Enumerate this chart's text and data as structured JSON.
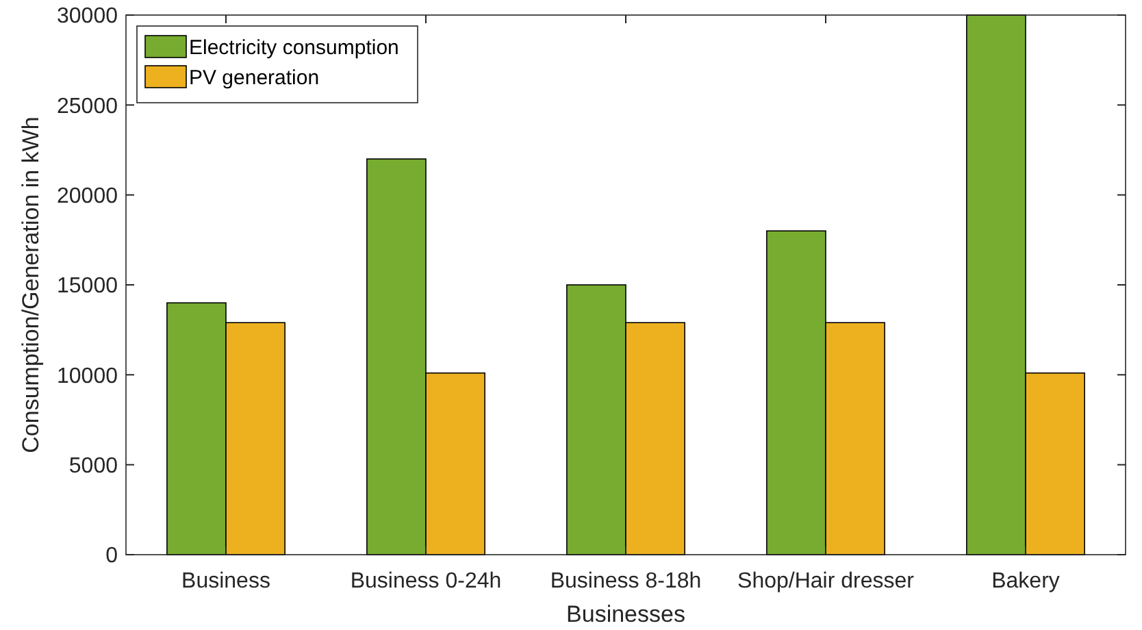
{
  "chart_data": {
    "type": "bar",
    "xlabel": "Businesses",
    "ylabel": "Consumption/Generation in kWh",
    "categories": [
      "Business",
      "Business 0-24h",
      "Business 8-18h",
      "Shop/Hair dresser",
      "Bakery"
    ],
    "series": [
      {
        "name": "Electricity consumption",
        "color": "#77ac30",
        "values": [
          14000,
          22000,
          15000,
          18000,
          30000
        ]
      },
      {
        "name": "PV generation",
        "color": "#edb120",
        "values": [
          12900,
          10100,
          12900,
          12900,
          10100
        ]
      }
    ],
    "ylim": [
      0,
      30000
    ],
    "yticks": [
      0,
      5000,
      10000,
      15000,
      20000,
      25000,
      30000
    ],
    "grid": false,
    "legend": "top left"
  }
}
